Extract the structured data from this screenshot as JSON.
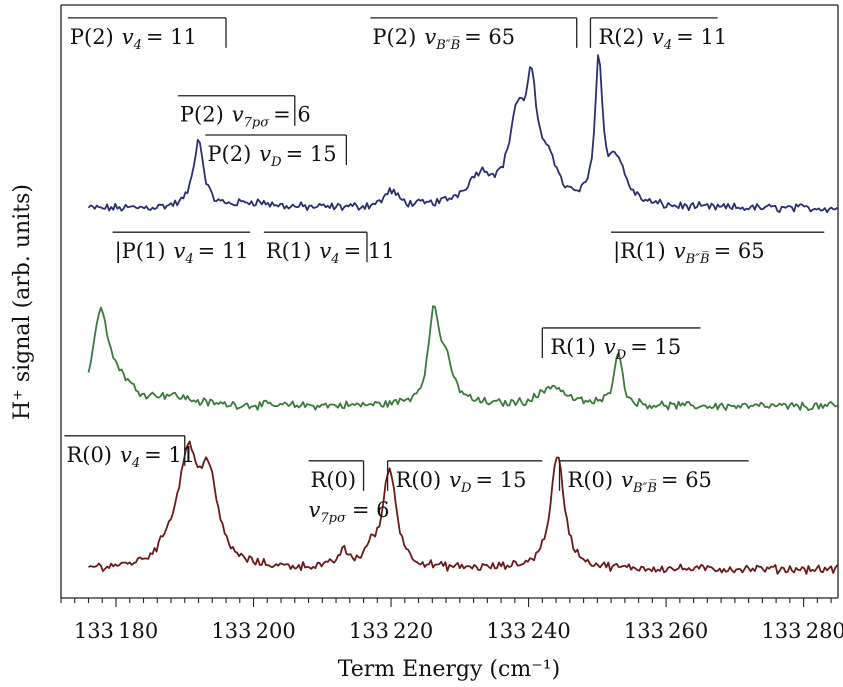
{
  "chart_data": {
    "type": "line",
    "xlabel": "Term Energy (cm⁻¹)",
    "ylabel": "H⁺ signal (arb. units)",
    "xlim": [
      133172,
      133285
    ],
    "ylim": [
      -0.4,
      7.9
    ],
    "xticks": [
      133180,
      133200,
      133220,
      133240,
      133260,
      133280
    ],
    "xtick_labels": [
      "133 180",
      "133 200",
      "133 220",
      "133 240",
      "133 260",
      "133 280"
    ],
    "grid": false,
    "series": [
      {
        "color": "#2b2f6e",
        "baseline": 5.05,
        "x_range": [
          133176,
          133285
        ],
        "peaks": [
          {
            "x": 133192.0,
            "height": 0.95,
            "width": 0.9
          },
          {
            "x": 133200.0,
            "height": 0.08,
            "width": 3.0
          },
          {
            "x": 133220.0,
            "height": 0.22,
            "width": 1.2
          },
          {
            "x": 133233.0,
            "height": 0.42,
            "width": 2.5
          },
          {
            "x": 133238.3,
            "height": 1.1,
            "width": 1.4
          },
          {
            "x": 133240.4,
            "height": 1.45,
            "width": 1.0
          },
          {
            "x": 133243.0,
            "height": 0.55,
            "width": 1.4
          },
          {
            "x": 133250.2,
            "height": 1.95,
            "width": 0.65
          },
          {
            "x": 133252.8,
            "height": 0.62,
            "width": 1.6
          }
        ]
      },
      {
        "color": "#3a7a3a",
        "baseline": 2.28,
        "x_range": [
          133176,
          133285
        ],
        "peaks": [
          {
            "x": 133177.8,
            "height": 1.28,
            "width": 1.3
          },
          {
            "x": 133180.5,
            "height": 0.28,
            "width": 2.2
          },
          {
            "x": 133188.0,
            "height": 0.12,
            "width": 3.5
          },
          {
            "x": 133226.2,
            "height": 1.15,
            "width": 0.9
          },
          {
            "x": 133227.8,
            "height": 0.55,
            "width": 1.5
          },
          {
            "x": 133243.5,
            "height": 0.28,
            "width": 2.2
          },
          {
            "x": 133253.0,
            "height": 0.78,
            "width": 0.7
          }
        ]
      },
      {
        "color": "#6b1a1a",
        "baseline": 0.0,
        "x_range": [
          133176,
          133285
        ],
        "peaks": [
          {
            "x": 133190.5,
            "height": 1.45,
            "width": 1.6
          },
          {
            "x": 133193.5,
            "height": 1.2,
            "width": 1.5
          },
          {
            "x": 133188.0,
            "height": 0.25,
            "width": 1.8
          },
          {
            "x": 133213.0,
            "height": 0.22,
            "width": 0.8
          },
          {
            "x": 133219.8,
            "height": 1.38,
            "width": 1.2
          },
          {
            "x": 133217.0,
            "height": 0.2,
            "width": 1.0
          },
          {
            "x": 133244.2,
            "height": 1.58,
            "width": 1.2
          }
        ]
      }
    ],
    "annotations": [
      {
        "pre": "P(2)",
        "sym": "v",
        "sub": "4",
        "post": "= 11",
        "x1": 133173,
        "x2": 133196,
        "y": 7.72,
        "bar_left": false,
        "bar_right": true
      },
      {
        "pre": "P(2)",
        "sym": "v",
        "sub": "7pσ",
        "post": "= 6",
        "x1": 133189,
        "x2": 133206,
        "y": 6.63,
        "bar_left": false,
        "bar_right": true
      },
      {
        "pre": "P(2)",
        "sym": "v",
        "sub": "D",
        "post": "= 15",
        "x1": 133193,
        "x2": 133213.5,
        "y": 6.08,
        "bar_left": false,
        "bar_right": true
      },
      {
        "pre": "P(2)",
        "sym": "v",
        "sub": "B″B̅",
        "post": "= 65",
        "x1": 133217,
        "x2": 133247,
        "y": 7.72,
        "bar_left": false,
        "bar_right": true
      },
      {
        "pre": "R(2)",
        "sym": "v",
        "sub": "4",
        "post": "= 11",
        "x1": 133249,
        "x2": 133267.5,
        "y": 7.72,
        "bar_left": true,
        "bar_right": false
      },
      {
        "pre": "|P(1)",
        "sym": "v",
        "sub": "4",
        "post": "= 11",
        "x1": 133179.5,
        "x2": 133199.5,
        "y": 4.72,
        "bar_left": false,
        "bar_right": false
      },
      {
        "pre": "R(1)",
        "sym": "v",
        "sub": "4",
        "post": "= 11",
        "x1": 133201.5,
        "x2": 133216.5,
        "y": 4.72,
        "bar_left": false,
        "bar_right": true
      },
      {
        "pre": "|R(1)",
        "sym": "v",
        "sub": "B″B̅",
        "post": "= 65",
        "x1": 133252,
        "x2": 133283,
        "y": 4.72,
        "bar_left": false,
        "bar_right": false
      },
      {
        "pre": "R(1)",
        "sym": "v",
        "sub": "D",
        "post": "= 15",
        "x1": 133242,
        "x2": 133265,
        "y": 3.38,
        "bar_left": true,
        "bar_right": false
      },
      {
        "pre": "R(0)",
        "sym": "v",
        "sub": "4",
        "post": "= 11",
        "x1": 133172.5,
        "x2": 133190,
        "y": 1.87,
        "bar_left": false,
        "bar_right": true
      },
      {
        "pre": "R(0)",
        "sym": "v",
        "sub": "D",
        "post": "= 15",
        "x1": 133219.5,
        "x2": 133242,
        "y": 1.52,
        "bar_left": true,
        "bar_right": false
      },
      {
        "pre": "R(0)",
        "sym": "v",
        "sub": "B″B̅",
        "post": "= 65",
        "x1": 133244.5,
        "x2": 133272,
        "y": 1.52,
        "bar_left": true,
        "bar_right": false
      },
      {
        "pre": "R(0)",
        "sym": "",
        "sub": "",
        "post": "",
        "x1": 133208,
        "x2": 133216,
        "y": 1.52,
        "bar_left": false,
        "bar_right": true
      },
      {
        "pre": "",
        "sym": "v",
        "sub": "7pσ",
        "post": "= 6",
        "x1": 133208,
        "x2": 133208,
        "y": 1.52,
        "bar_left": false,
        "bar_right": false,
        "line_break": true
      }
    ]
  }
}
